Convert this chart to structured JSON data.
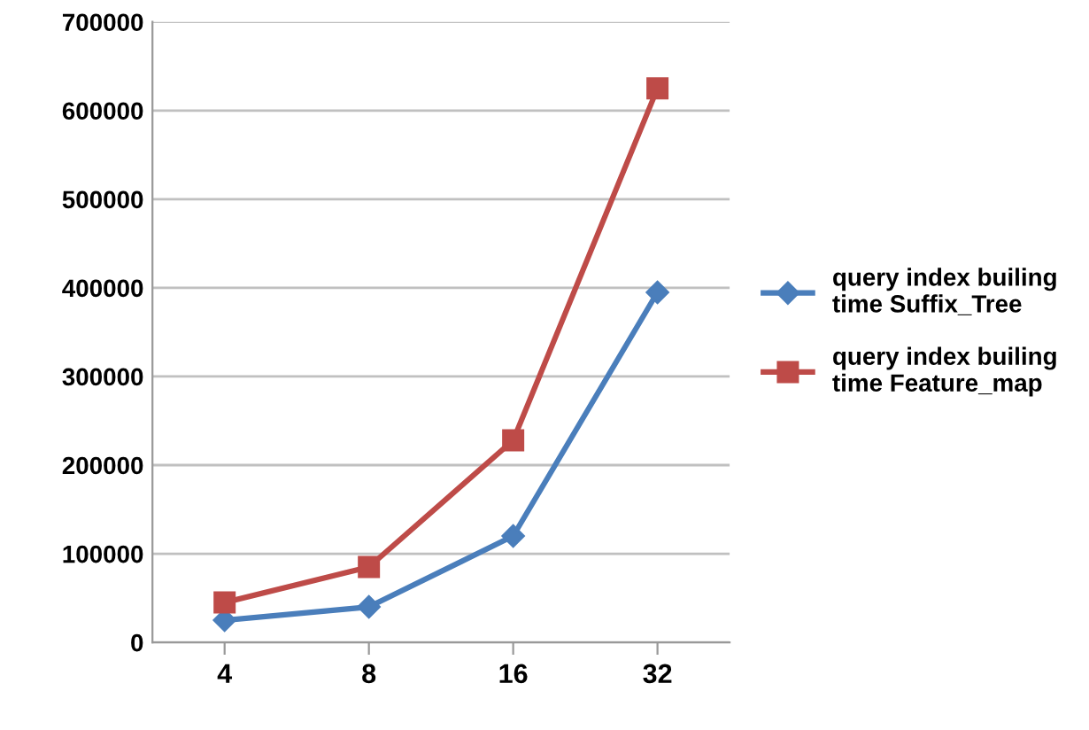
{
  "chart_data": {
    "type": "line",
    "categories": [
      "4",
      "8",
      "16",
      "32"
    ],
    "series": [
      {
        "name": "query index builing time Suffix_Tree",
        "color": "#4a7ebb",
        "marker": "diamond",
        "values": [
          25000,
          40000,
          120000,
          395000
        ]
      },
      {
        "name": "query index builing time Feature_map",
        "color": "#be4b48",
        "marker": "square",
        "values": [
          45000,
          85000,
          228000,
          625000
        ]
      }
    ],
    "ylim": [
      0,
      700000
    ],
    "yticks": [
      0,
      100000,
      200000,
      300000,
      400000,
      500000,
      600000,
      700000
    ],
    "grid": "y",
    "legend": "right",
    "line_style": "solid"
  }
}
